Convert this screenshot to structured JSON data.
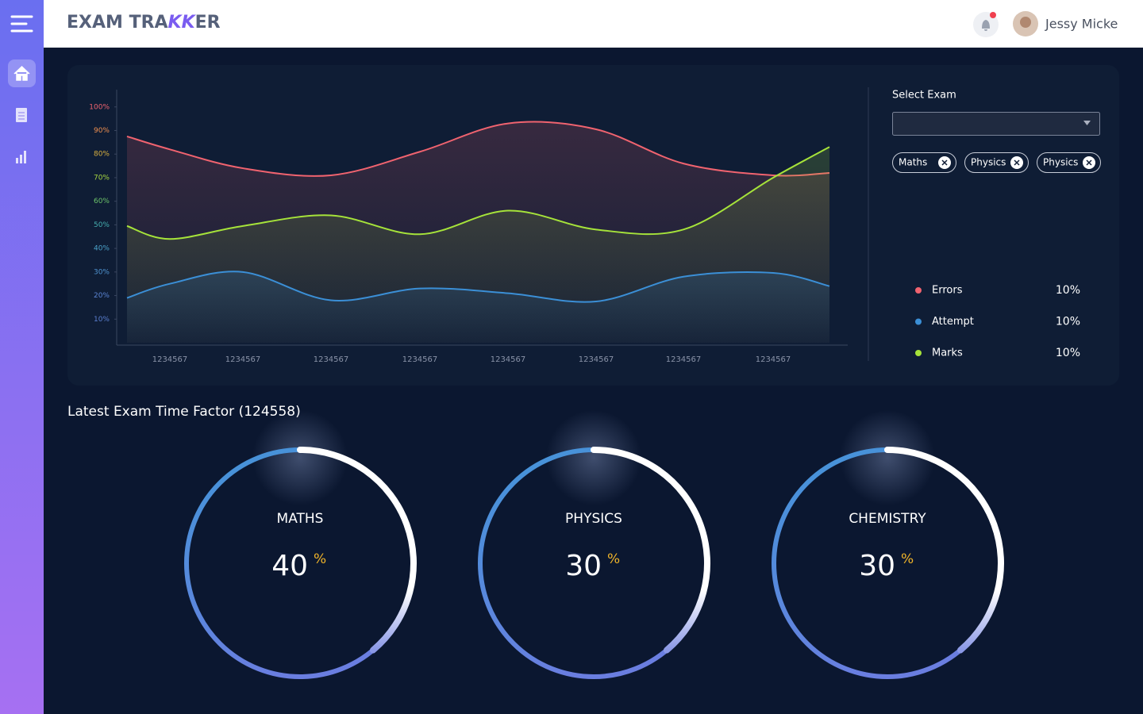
{
  "header": {
    "logo": [
      "EXAM TRA",
      "KK",
      "ER"
    ],
    "user_name": "Jessy Micke"
  },
  "chart": {
    "type": "line",
    "categories": [
      null,
      "1234567",
      "1234567",
      "1234567",
      "1234567",
      "1234567",
      "1234567",
      "1234567",
      "1234567",
      null
    ],
    "ylim": [
      0,
      108
    ],
    "yticks": [
      {
        "value": 10,
        "label": "10%"
      },
      {
        "value": 20,
        "label": "20%"
      },
      {
        "value": 30,
        "label": "30%"
      },
      {
        "value": 40,
        "label": "40%"
      },
      {
        "value": 50,
        "label": "50%"
      },
      {
        "value": 60,
        "label": "60%"
      },
      {
        "value": 70,
        "label": "70%"
      },
      {
        "value": 80,
        "label": "80%"
      },
      {
        "value": 90,
        "label": "90%"
      },
      {
        "value": 100,
        "label": "100%"
      }
    ],
    "series": [
      {
        "name": "Errors",
        "color": "#f0636f",
        "share": "10%",
        "values": [
          87.5,
          82,
          74,
          71,
          81,
          93,
          90.5,
          76,
          71,
          72
        ]
      },
      {
        "name": "Attempt",
        "color": "#3b8fd6",
        "share": "10%",
        "values": [
          19,
          25,
          30,
          18,
          23,
          21,
          17.5,
          28,
          29.6,
          24
        ]
      },
      {
        "name": "Marks",
        "color": "#a6e33a",
        "share": "10%",
        "values": [
          49.5,
          44,
          49.5,
          54,
          46,
          56,
          48,
          48,
          70,
          83
        ]
      }
    ]
  },
  "filter": {
    "label": "Select Exam",
    "chips": [
      "Maths",
      "Physics",
      "Physics"
    ]
  },
  "gauges": {
    "title": "Latest Exam Time Factor (124558)",
    "items": [
      {
        "name": "MATHS",
        "value": "40",
        "unit": "%"
      },
      {
        "name": "PHYSICS",
        "value": "30",
        "unit": "%"
      },
      {
        "name": "CHEMISTRY",
        "value": "30",
        "unit": "%"
      }
    ]
  }
}
